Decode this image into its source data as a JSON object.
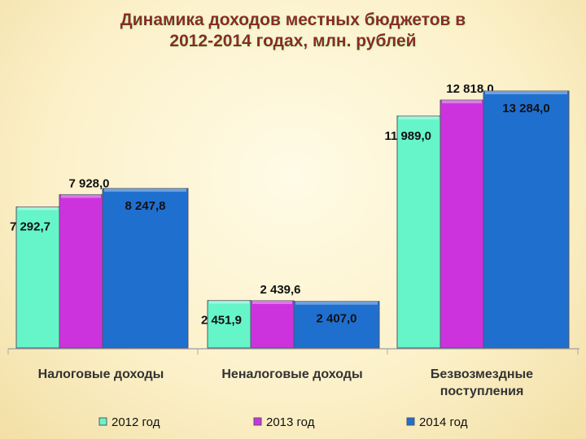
{
  "chart_data": {
    "type": "bar",
    "title": "Динамика доходов местных бюджетов в 2012-2014 годах, млн. рублей",
    "categories": [
      "Налоговые доходы",
      "Неналоговые доходы",
      "Безвозмездные поступления"
    ],
    "series": [
      {
        "name": "2012 год",
        "color": "#66f5c8",
        "values": [
          7292.7,
          2451.9,
          11989.0
        ],
        "value_labels": [
          "7 292,7",
          "2 451,9",
          "11 989,0"
        ]
      },
      {
        "name": "2013 год",
        "color": "#cc33dd",
        "values": [
          7928.0,
          2439.6,
          12818.0
        ],
        "value_labels": [
          "7 928,0",
          "2 439,6",
          "12 818,0"
        ]
      },
      {
        "name": "2014 год",
        "color": "#1f6fcf",
        "values": [
          8247.8,
          2407.0,
          13284.0
        ],
        "value_labels": [
          "8 247,8",
          "2 407,0",
          "13 284,0"
        ]
      }
    ]
  }
}
